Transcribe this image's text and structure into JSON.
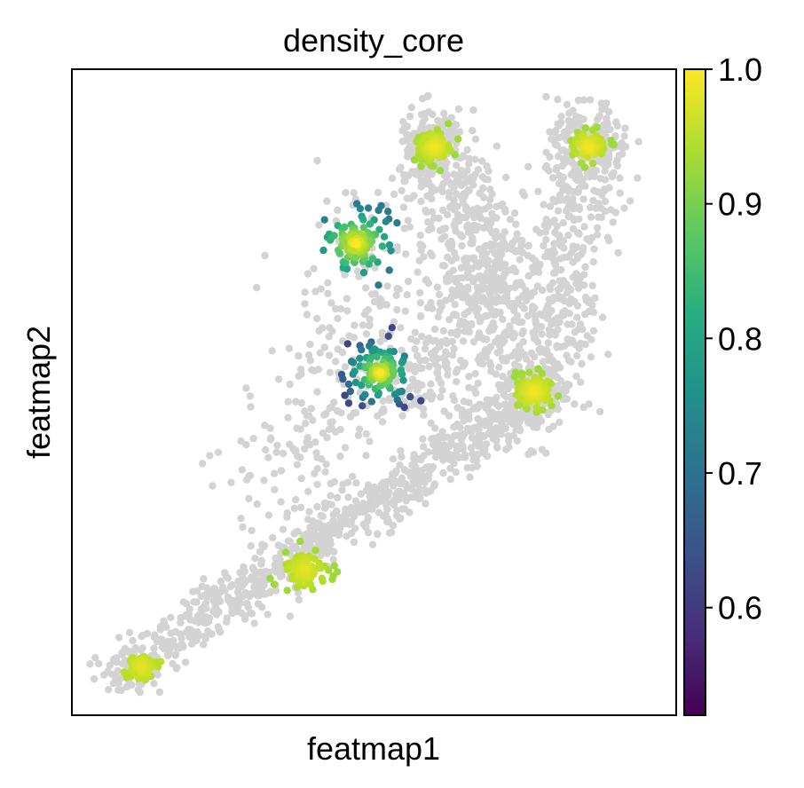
{
  "chart_data": {
    "type": "scatter",
    "title": "density_core",
    "xlabel": "featmap1",
    "ylabel": "featmap2",
    "background_color": "#d3d3d3",
    "colormap": "viridis",
    "colorbar": {
      "range": [
        0.52,
        1.0
      ],
      "ticks": [
        "0.6",
        "0.7",
        "0.8",
        "0.9",
        "1.0"
      ],
      "tick_values": [
        0.6,
        0.7,
        0.8,
        0.9,
        1.0
      ]
    },
    "clusters": [
      {
        "name": "bottom-left",
        "center": [
          0.115,
          0.075
        ],
        "spread": 0.011,
        "inner_value": 0.98,
        "outer_value": 0.95
      },
      {
        "name": "lower-diagonal",
        "center": [
          0.385,
          0.225
        ],
        "spread": 0.022,
        "inner_value": 0.98,
        "outer_value": 0.93
      },
      {
        "name": "upper-left-ring",
        "center": [
          0.47,
          0.73
        ],
        "spread": 0.035,
        "inner_value": 1.0,
        "outer_value": 0.72
      },
      {
        "name": "middle-ring",
        "center": [
          0.51,
          0.53
        ],
        "spread": 0.035,
        "inner_value": 1.0,
        "outer_value": 0.62
      },
      {
        "name": "top-center",
        "center": [
          0.6,
          0.88
        ],
        "spread": 0.018,
        "inner_value": 0.99,
        "outer_value": 0.93
      },
      {
        "name": "top-right",
        "center": [
          0.855,
          0.88
        ],
        "spread": 0.018,
        "inner_value": 0.99,
        "outer_value": 0.93
      },
      {
        "name": "right-middle",
        "center": [
          0.765,
          0.5
        ],
        "spread": 0.02,
        "inner_value": 0.99,
        "outer_value": 0.93
      }
    ]
  }
}
